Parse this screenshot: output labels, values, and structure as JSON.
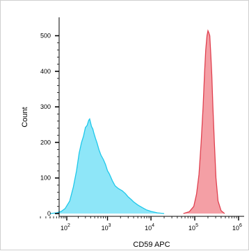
{
  "chart_data": {
    "type": "area",
    "xlabel": "CD59 APC",
    "ylabel": "Count",
    "xscale": "biexponential",
    "x_tick_labels": [
      {
        "base": "10",
        "exp": "2"
      },
      {
        "base": "10",
        "exp": "3"
      },
      {
        "base": "10",
        "exp": "4"
      },
      {
        "base": "10",
        "exp": "5"
      },
      {
        "base": "10",
        "exp": "6"
      }
    ],
    "y_tick_labels": [
      "0",
      "100",
      "200",
      "300",
      "400",
      "500"
    ],
    "ylim": [
      0,
      540
    ],
    "grid": false,
    "series": [
      {
        "color": "#1ec8ea",
        "fill": "#8ee6f8",
        "points": [
          [
            30,
            0
          ],
          [
            50,
            2
          ],
          [
            70,
            6
          ],
          [
            90,
            14
          ],
          [
            120,
            35
          ],
          [
            150,
            75
          ],
          [
            180,
            120
          ],
          [
            210,
            170
          ],
          [
            240,
            200
          ],
          [
            270,
            218
          ],
          [
            300,
            242
          ],
          [
            330,
            248
          ],
          [
            360,
            262
          ],
          [
            380,
            266
          ],
          [
            400,
            255
          ],
          [
            420,
            245
          ],
          [
            450,
            238
          ],
          [
            480,
            226
          ],
          [
            520,
            212
          ],
          [
            570,
            198
          ],
          [
            630,
            180
          ],
          [
            700,
            165
          ],
          [
            800,
            152
          ],
          [
            900,
            138
          ],
          [
            1000,
            120
          ],
          [
            1100,
            112
          ],
          [
            1300,
            92
          ],
          [
            1500,
            78
          ],
          [
            1800,
            70
          ],
          [
            2200,
            64
          ],
          [
            2600,
            56
          ],
          [
            3000,
            47
          ],
          [
            3500,
            40
          ],
          [
            4000,
            33
          ],
          [
            5000,
            24
          ],
          [
            6500,
            16
          ],
          [
            8000,
            10
          ],
          [
            10000,
            6
          ],
          [
            14000,
            2
          ],
          [
            20000,
            0
          ]
        ]
      },
      {
        "color": "#e0404f",
        "fill": "#f49fa5",
        "points": [
          [
            55000,
            0
          ],
          [
            75000,
            5
          ],
          [
            95000,
            20
          ],
          [
            110000,
            55
          ],
          [
            125000,
            110
          ],
          [
            140000,
            200
          ],
          [
            155000,
            300
          ],
          [
            168000,
            400
          ],
          [
            178000,
            460
          ],
          [
            190000,
            500
          ],
          [
            200000,
            514
          ],
          [
            210000,
            508
          ],
          [
            220000,
            500
          ],
          [
            232000,
            450
          ],
          [
            245000,
            390
          ],
          [
            260000,
            300
          ],
          [
            280000,
            200
          ],
          [
            305000,
            100
          ],
          [
            340000,
            35
          ],
          [
            400000,
            8
          ],
          [
            480000,
            0
          ]
        ]
      }
    ]
  }
}
